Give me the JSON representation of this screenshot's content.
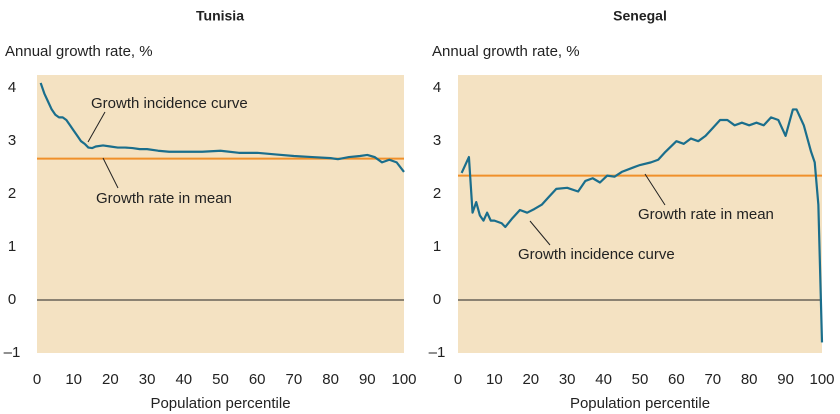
{
  "chart_data": [
    {
      "type": "line",
      "title": "Tunisia",
      "ylabel": "Annual growth rate, %",
      "xlabel": "Population percentile",
      "x": [
        1,
        2,
        3,
        4,
        5,
        6,
        7,
        8,
        9,
        10,
        11,
        12,
        13,
        14,
        15,
        16,
        18,
        20,
        22,
        24,
        26,
        28,
        30,
        33,
        36,
        40,
        45,
        50,
        55,
        60,
        65,
        70,
        75,
        80,
        82,
        85,
        88,
        90,
        92,
        94,
        96,
        98,
        100
      ],
      "values": [
        4.1,
        3.9,
        3.75,
        3.6,
        3.5,
        3.45,
        3.45,
        3.4,
        3.3,
        3.2,
        3.1,
        3.0,
        2.95,
        2.88,
        2.87,
        2.9,
        2.92,
        2.9,
        2.88,
        2.88,
        2.87,
        2.85,
        2.85,
        2.82,
        2.8,
        2.8,
        2.8,
        2.82,
        2.78,
        2.78,
        2.75,
        2.72,
        2.7,
        2.68,
        2.66,
        2.7,
        2.72,
        2.74,
        2.7,
        2.6,
        2.65,
        2.6,
        2.42
      ],
      "color": "#1a6e8c",
      "mean": 2.67,
      "mean_color": "#f0902a",
      "annotations": [
        "Growth incidence curve",
        "Growth rate in mean"
      ],
      "xlim": [
        0,
        100
      ],
      "xticks": [
        0,
        10,
        20,
        30,
        40,
        50,
        60,
        70,
        80,
        90,
        100
      ],
      "ylim": [
        -1,
        4.25
      ],
      "yticks": [
        4,
        3,
        2,
        1,
        0,
        {
          "value": -1,
          "label": "–1"
        }
      ]
    },
    {
      "type": "line",
      "title": "Senegal",
      "ylabel": "Annual growth rate, %",
      "xlabel": "Population percentile",
      "x": [
        1,
        3,
        4,
        5,
        6,
        7,
        8,
        9,
        10,
        12,
        13,
        15,
        17,
        19,
        21,
        23,
        25,
        27,
        30,
        33,
        35,
        37,
        39,
        41,
        43,
        45,
        48,
        50,
        53,
        55,
        57,
        60,
        62,
        64,
        66,
        68,
        70,
        72,
        74,
        76,
        78,
        80,
        82,
        84,
        86,
        88,
        90,
        92,
        93,
        95,
        97,
        98,
        99,
        100
      ],
      "values": [
        2.4,
        2.7,
        1.65,
        1.85,
        1.6,
        1.5,
        1.65,
        1.5,
        1.5,
        1.45,
        1.38,
        1.55,
        1.7,
        1.65,
        1.72,
        1.8,
        1.95,
        2.1,
        2.12,
        2.05,
        2.25,
        2.3,
        2.22,
        2.35,
        2.33,
        2.42,
        2.5,
        2.55,
        2.6,
        2.65,
        2.8,
        3.0,
        2.95,
        3.05,
        3.0,
        3.1,
        3.25,
        3.4,
        3.4,
        3.3,
        3.35,
        3.3,
        3.35,
        3.3,
        3.45,
        3.4,
        3.1,
        3.6,
        3.6,
        3.3,
        2.8,
        2.6,
        1.8,
        -0.8
      ],
      "color": "#1a6e8c",
      "mean": 2.35,
      "mean_color": "#f0902a",
      "annotations": [
        "Growth rate in mean",
        "Growth incidence curve"
      ],
      "xlim": [
        0,
        100
      ],
      "xticks": [
        0,
        10,
        20,
        30,
        40,
        50,
        60,
        70,
        80,
        90,
        100
      ],
      "ylim": [
        -1,
        4.25
      ],
      "yticks": [
        4,
        3,
        2,
        1,
        0,
        {
          "value": -1,
          "label": "–1"
        }
      ]
    }
  ]
}
